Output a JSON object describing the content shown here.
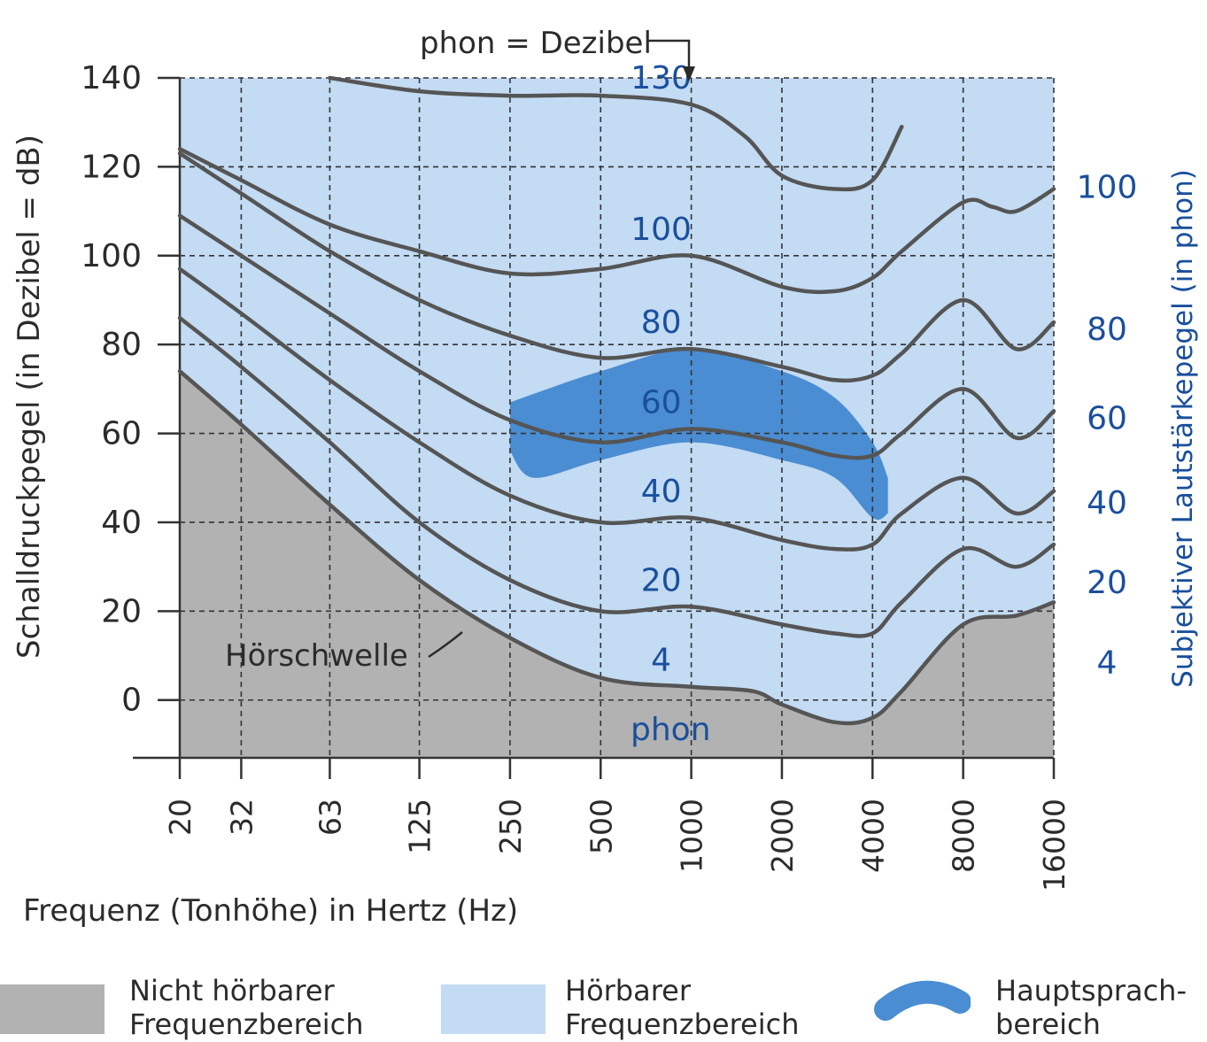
{
  "chart_data": {
    "type": "line",
    "annotation_top": "phon = Dezibel",
    "xlabel": "Frequenz (Tonhöhe) in Hertz (Hz)",
    "ylabel": "Schalldruckpegel (in Dezibel = dB)",
    "ylabel_right": "Subjektiver Lautstärkepegel (in phon)",
    "x_scale": "log",
    "x_ticks": [
      "20",
      "32",
      "63",
      "125",
      "250",
      "500",
      "1000",
      "2000",
      "4000",
      "8000",
      "16000"
    ],
    "y_ticks": [
      "140",
      "120",
      "100",
      "80",
      "60",
      "40",
      "20",
      "0"
    ],
    "ylim": [
      -13,
      140
    ],
    "right_ticks": [
      "100",
      "80",
      "60",
      "40",
      "20",
      "4"
    ],
    "grid": true,
    "threshold_label": "Hörschwelle",
    "unit_label": "phon",
    "colors": {
      "inaudible": "#b2b2b2",
      "audible": "#c3dbf3",
      "speech": "#4a8dd2",
      "curve": "#555555",
      "blue_text": "#1a4f9c"
    },
    "series": [
      {
        "label": "4",
        "x": [
          20,
          32,
          63,
          125,
          250,
          500,
          1000,
          1600,
          2000,
          3000,
          4000,
          5000,
          8000,
          12000,
          16000
        ],
        "y": [
          74,
          62,
          44,
          27,
          14,
          5,
          3,
          2,
          -1,
          -5,
          -4,
          2,
          17,
          19,
          22
        ]
      },
      {
        "label": "20",
        "x": [
          20,
          32,
          63,
          125,
          250,
          500,
          1000,
          2000,
          3000,
          4000,
          5000,
          8000,
          12000,
          16000
        ],
        "y": [
          86,
          75,
          58,
          40,
          27,
          20,
          21,
          17,
          15,
          15,
          22,
          34,
          30,
          35
        ]
      },
      {
        "label": "40",
        "x": [
          20,
          32,
          63,
          125,
          250,
          500,
          1000,
          2000,
          3000,
          4000,
          5000,
          8000,
          12000,
          16000
        ],
        "y": [
          97,
          87,
          72,
          58,
          46,
          40,
          41,
          36,
          34,
          35,
          42,
          50,
          42,
          47
        ]
      },
      {
        "label": "60",
        "x": [
          20,
          32,
          63,
          125,
          250,
          500,
          1000,
          2000,
          3000,
          4000,
          5000,
          8000,
          12000,
          16000
        ],
        "y": [
          109,
          100,
          87,
          74,
          63,
          58,
          61,
          58,
          55,
          55,
          60,
          70,
          59,
          65
        ]
      },
      {
        "label": "80",
        "x": [
          20,
          32,
          63,
          125,
          250,
          500,
          1000,
          2000,
          3000,
          4000,
          5000,
          8000,
          12000,
          16000
        ],
        "y": [
          123,
          114,
          101,
          90,
          82,
          77,
          79,
          75,
          72,
          73,
          78,
          90,
          79,
          85
        ]
      },
      {
        "label": "100",
        "x": [
          20,
          32,
          63,
          125,
          250,
          500,
          1000,
          2000,
          3000,
          4000,
          5000,
          8000,
          10000,
          12000,
          16000
        ],
        "y": [
          124,
          117,
          107,
          101,
          96,
          97,
          100,
          93,
          92,
          95,
          101,
          112,
          111,
          110,
          115
        ]
      },
      {
        "label": "130",
        "x": [
          63,
          125,
          250,
          500,
          1000,
          1500,
          2000,
          3000,
          4000,
          5000
        ],
        "y": [
          140,
          137,
          136,
          136,
          134,
          127,
          118,
          115,
          117,
          129
        ]
      }
    ],
    "speech_area": {
      "label": "Hauptsprachbereich",
      "upper": {
        "x": [
          250,
          500,
          1000,
          2000,
          3000,
          4000,
          4500
        ],
        "y": [
          67,
          74,
          79,
          74,
          68,
          58,
          50
        ]
      },
      "lower": {
        "x": [
          4500,
          4000,
          3000,
          2000,
          1000,
          500,
          300,
          250
        ],
        "y": [
          42,
          41,
          50,
          54,
          58,
          54,
          50,
          56
        ]
      }
    },
    "legend": [
      {
        "label": "Nicht hörbarer Frequenzbereich",
        "color": "#b2b2b2"
      },
      {
        "label": "Hörbarer Frequenzbereich",
        "color": "#c3dbf3"
      },
      {
        "label": "Hauptsprach- bereich",
        "color": "#4a8dd2"
      }
    ]
  }
}
